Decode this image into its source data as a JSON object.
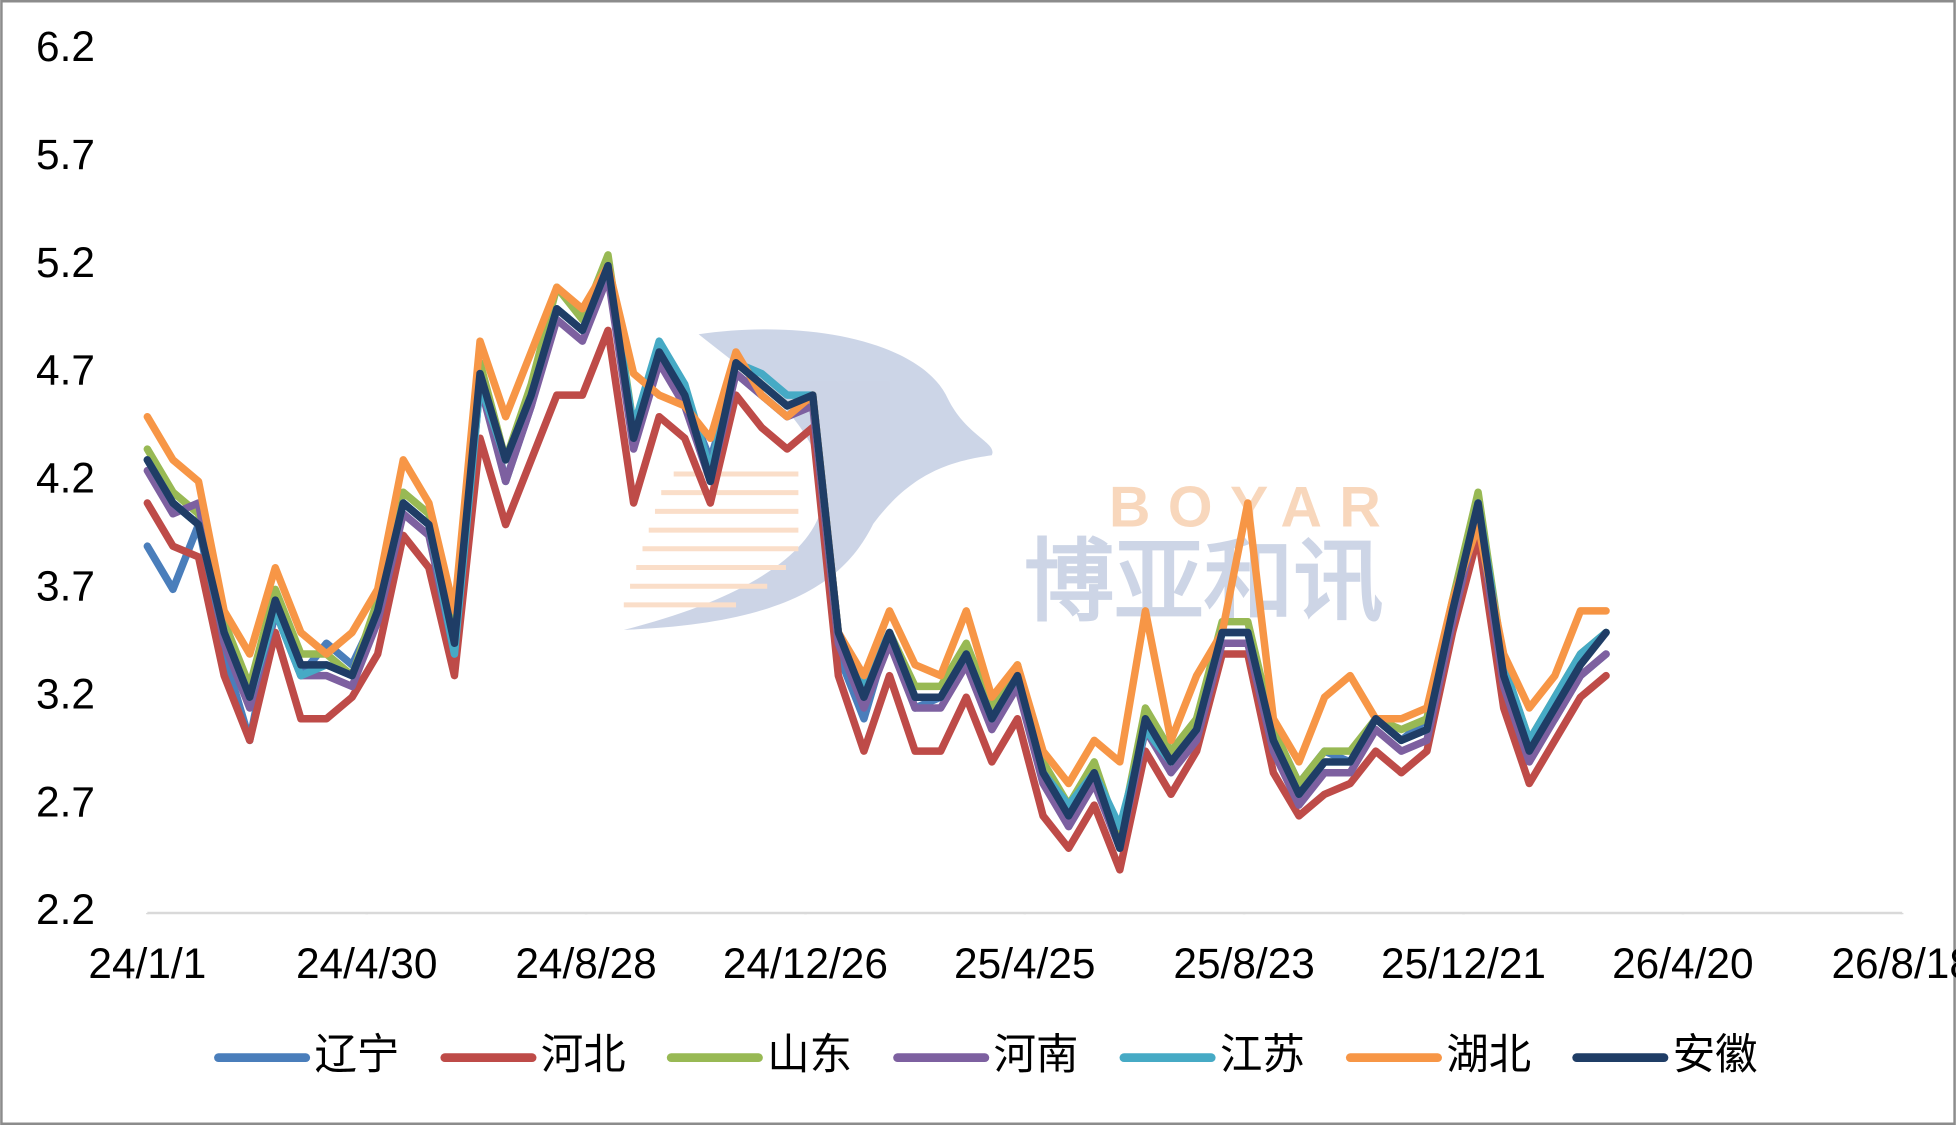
{
  "chart_data": {
    "type": "line",
    "watermark_text": [
      "BOYAR",
      "博亚和讯"
    ],
    "x": [
      "2024-01-01",
      "2024-01-15",
      "2024-01-29",
      "2024-02-12",
      "2024-02-26",
      "2024-03-11",
      "2024-03-25",
      "2024-04-08",
      "2024-04-22",
      "2024-05-06",
      "2024-05-20",
      "2024-06-03",
      "2024-06-17",
      "2024-07-01",
      "2024-07-15",
      "2024-07-29",
      "2024-08-12",
      "2024-08-26",
      "2024-09-09",
      "2024-09-23",
      "2024-10-07",
      "2024-10-21",
      "2024-11-04",
      "2024-11-18",
      "2024-12-02",
      "2024-12-16",
      "2024-12-30",
      "2025-01-13",
      "2025-01-27",
      "2025-02-10",
      "2025-02-24",
      "2025-03-10",
      "2025-03-24",
      "2025-04-07",
      "2025-04-21",
      "2025-05-05",
      "2025-05-19",
      "2025-06-02",
      "2025-06-16",
      "2025-06-30",
      "2025-07-14",
      "2025-07-28",
      "2025-08-11",
      "2025-08-25",
      "2025-09-08",
      "2025-09-22",
      "2025-10-06",
      "2025-10-20",
      "2025-11-03",
      "2025-11-17",
      "2025-12-01",
      "2025-12-15",
      "2025-12-29",
      "2026-01-12",
      "2026-01-26",
      "2026-02-09",
      "2026-02-23",
      "2026-03-09"
    ],
    "series": [
      {
        "name": "辽宁",
        "color": "#4a7ebb",
        "values": [
          3.9,
          3.7,
          4.0,
          3.4,
          3.0,
          3.6,
          3.3,
          3.45,
          3.35,
          3.6,
          4.1,
          4.0,
          3.45,
          4.7,
          4.2,
          4.55,
          5.0,
          4.9,
          5.2,
          4.4,
          4.8,
          4.6,
          4.3,
          4.7,
          4.6,
          4.5,
          4.6,
          3.4,
          3.1,
          3.5,
          3.15,
          3.2,
          3.4,
          3.1,
          3.3,
          2.85,
          2.65,
          2.85,
          2.55,
          3.1,
          2.9,
          3.1,
          3.5,
          3.5,
          3.05,
          2.8,
          2.95,
          2.9,
          3.1,
          3.0,
          3.1,
          3.6,
          4.05,
          3.3,
          2.95,
          3.1,
          3.3,
          3.4
        ]
      },
      {
        "name": "河北",
        "color": "#be4b48",
        "values": [
          4.1,
          3.9,
          3.85,
          3.3,
          3.0,
          3.5,
          3.1,
          3.1,
          3.2,
          3.4,
          3.95,
          3.8,
          3.3,
          4.4,
          4.0,
          4.3,
          4.6,
          4.6,
          4.9,
          4.1,
          4.5,
          4.4,
          4.1,
          4.6,
          4.45,
          4.35,
          4.45,
          3.3,
          2.95,
          3.3,
          2.95,
          2.95,
          3.2,
          2.9,
          3.1,
          2.65,
          2.5,
          2.7,
          2.4,
          2.95,
          2.75,
          2.95,
          3.4,
          3.4,
          2.85,
          2.65,
          2.75,
          2.8,
          2.95,
          2.85,
          2.95,
          3.5,
          3.95,
          3.15,
          2.8,
          3.0,
          3.2,
          3.3
        ]
      },
      {
        "name": "山东",
        "color": "#98b954",
        "values": [
          4.35,
          4.15,
          4.05,
          3.55,
          3.25,
          3.7,
          3.4,
          3.4,
          3.3,
          3.65,
          4.15,
          4.05,
          3.5,
          4.75,
          4.3,
          4.65,
          5.1,
          4.95,
          5.25,
          4.45,
          4.8,
          4.6,
          4.25,
          4.75,
          4.65,
          4.55,
          4.6,
          3.5,
          3.25,
          3.5,
          3.25,
          3.25,
          3.45,
          3.15,
          3.35,
          2.9,
          2.7,
          2.9,
          2.55,
          3.15,
          2.95,
          3.1,
          3.55,
          3.55,
          3.05,
          2.8,
          2.95,
          2.95,
          3.1,
          3.05,
          3.1,
          3.65,
          4.15,
          3.35,
          3.0,
          3.2,
          3.4,
          3.5
        ]
      },
      {
        "name": "河南",
        "color": "#7d60a0",
        "values": [
          4.25,
          4.05,
          4.1,
          3.45,
          3.15,
          3.6,
          3.3,
          3.3,
          3.25,
          3.55,
          4.05,
          3.95,
          3.4,
          4.65,
          4.2,
          4.55,
          4.95,
          4.85,
          5.15,
          4.35,
          4.75,
          4.55,
          4.2,
          4.7,
          4.6,
          4.5,
          4.55,
          3.45,
          3.15,
          3.45,
          3.15,
          3.15,
          3.35,
          3.05,
          3.25,
          2.8,
          2.6,
          2.8,
          2.5,
          3.05,
          2.85,
          3.0,
          3.45,
          3.45,
          2.95,
          2.7,
          2.85,
          2.85,
          3.05,
          2.95,
          3.0,
          3.55,
          4.05,
          3.25,
          2.9,
          3.1,
          3.3,
          3.4
        ]
      },
      {
        "name": "江苏",
        "color": "#46aac5",
        "values": [
          4.3,
          4.1,
          4.0,
          3.5,
          3.2,
          3.6,
          3.3,
          3.35,
          3.3,
          3.6,
          4.1,
          4.0,
          3.4,
          4.65,
          4.3,
          4.6,
          5.0,
          4.9,
          5.2,
          4.45,
          4.85,
          4.65,
          4.25,
          4.75,
          4.7,
          4.6,
          4.6,
          3.5,
          3.25,
          3.5,
          3.2,
          3.2,
          3.4,
          3.1,
          3.3,
          2.85,
          2.7,
          2.85,
          2.6,
          3.05,
          2.9,
          3.05,
          3.5,
          3.5,
          3.0,
          2.75,
          2.9,
          2.9,
          3.1,
          3.0,
          3.05,
          3.6,
          4.1,
          3.35,
          3.0,
          3.2,
          3.4,
          3.5
        ]
      },
      {
        "name": "湖北",
        "color": "#f79646",
        "values": [
          4.5,
          4.3,
          4.2,
          3.6,
          3.4,
          3.8,
          3.5,
          3.4,
          3.5,
          3.7,
          4.3,
          4.1,
          3.6,
          4.85,
          4.5,
          4.8,
          5.1,
          5.0,
          5.2,
          4.7,
          4.6,
          4.55,
          4.4,
          4.8,
          4.6,
          4.5,
          4.6,
          3.5,
          3.3,
          3.6,
          3.35,
          3.3,
          3.6,
          3.2,
          3.35,
          2.95,
          2.8,
          3.0,
          2.9,
          3.6,
          3.0,
          3.3,
          3.5,
          4.1,
          3.1,
          2.9,
          3.2,
          3.3,
          3.1,
          3.1,
          3.15,
          3.65,
          4.0,
          3.4,
          3.15,
          3.3,
          3.6,
          3.6
        ]
      },
      {
        "name": "安徽",
        "color": "#1f3d66",
        "values": [
          4.3,
          4.1,
          4.0,
          3.5,
          3.2,
          3.65,
          3.35,
          3.35,
          3.3,
          3.6,
          4.1,
          4.0,
          3.45,
          4.7,
          4.3,
          4.6,
          5.0,
          4.9,
          5.2,
          4.4,
          4.8,
          4.6,
          4.2,
          4.75,
          4.65,
          4.55,
          4.6,
          3.5,
          3.2,
          3.5,
          3.2,
          3.2,
          3.4,
          3.1,
          3.3,
          2.85,
          2.65,
          2.85,
          2.5,
          3.1,
          2.9,
          3.05,
          3.5,
          3.5,
          3.0,
          2.75,
          2.9,
          2.9,
          3.1,
          3.0,
          3.05,
          3.6,
          4.1,
          3.3,
          2.95,
          3.15,
          3.35,
          3.5
        ]
      }
    ],
    "xlim": [
      "2024-01-01",
      "2026-08-18"
    ],
    "xticks": [
      {
        "value": "2024-01-01",
        "label": "24/1/1"
      },
      {
        "value": "2024-04-30",
        "label": "24/4/30"
      },
      {
        "value": "2024-08-28",
        "label": "24/8/28"
      },
      {
        "value": "2024-12-26",
        "label": "24/12/26"
      },
      {
        "value": "2025-04-25",
        "label": "25/4/25"
      },
      {
        "value": "2025-08-23",
        "label": "25/8/23"
      },
      {
        "value": "2025-12-21",
        "label": "25/12/21"
      },
      {
        "value": "2026-04-20",
        "label": "26/4/20"
      },
      {
        "value": "2026-08-18",
        "label": "26/8/18"
      }
    ],
    "ylim": [
      2.2,
      6.2
    ],
    "yticks": [
      2.2,
      2.7,
      3.2,
      3.7,
      4.2,
      4.7,
      5.2,
      5.7,
      6.2
    ],
    "legend": "bottom"
  }
}
